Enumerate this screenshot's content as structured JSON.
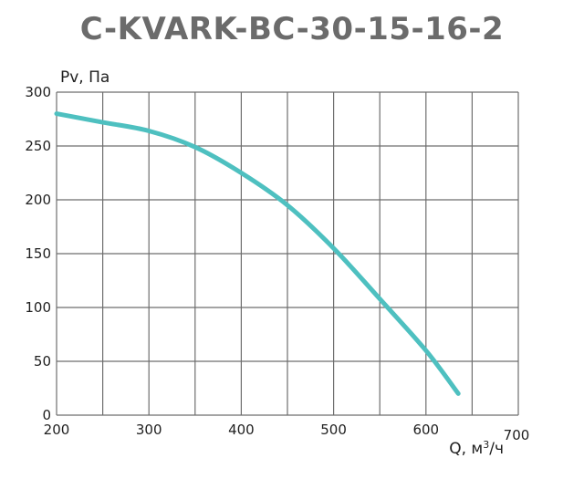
{
  "chart_data": {
    "type": "line",
    "title": "C-KVARK-BC-30-15-16-2",
    "ylabel": "Pv, Па",
    "xlabel_prefix": "Q, м",
    "xlabel_sup": "3",
    "xlabel_suffix": "/ч",
    "xlim": [
      200,
      700
    ],
    "ylim": [
      0,
      300
    ],
    "x_ticks": [
      200,
      300,
      400,
      500,
      600,
      700
    ],
    "y_ticks": [
      0,
      50,
      100,
      150,
      200,
      250,
      300
    ],
    "grid": true,
    "line_color": "#4ec0c0",
    "series": [
      {
        "x": [
          200,
          250,
          300,
          350,
          400,
          450,
          500,
          550,
          600,
          635
        ],
        "values": [
          280,
          272,
          264,
          249,
          225,
          195,
          155,
          108,
          60,
          20
        ]
      }
    ]
  }
}
